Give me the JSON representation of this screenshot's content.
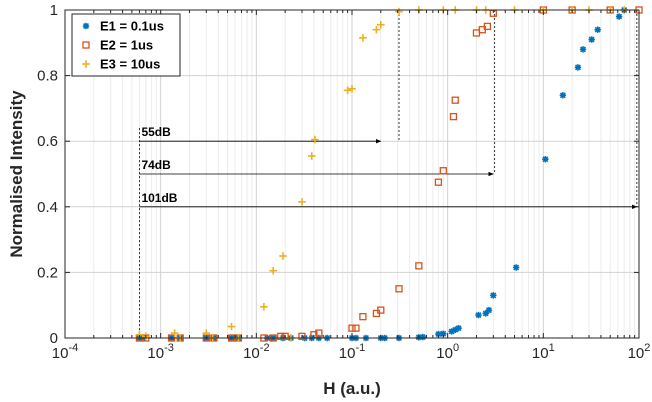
{
  "chart_data": {
    "type": "scatter",
    "xscale": "log",
    "xlim": [
      0.0001,
      100
    ],
    "ylim": [
      0,
      1
    ],
    "xlabel": "H (a.u.)",
    "ylabel": "Normalised Intensity",
    "xticks": [
      {
        "value": 0.0001,
        "base": "10",
        "exp": "-4"
      },
      {
        "value": 0.001,
        "base": "10",
        "exp": "-3"
      },
      {
        "value": 0.01,
        "base": "10",
        "exp": "-2"
      },
      {
        "value": 0.1,
        "base": "10",
        "exp": "-1"
      },
      {
        "value": 1,
        "base": "10",
        "exp": "0"
      },
      {
        "value": 10,
        "base": "10",
        "exp": "1"
      },
      {
        "value": 100,
        "base": "10",
        "exp": "2"
      }
    ],
    "yticks": [
      {
        "value": 0,
        "label": "0"
      },
      {
        "value": 0.2,
        "label": "0.2"
      },
      {
        "value": 0.4,
        "label": "0.4"
      },
      {
        "value": 0.6,
        "label": "0.6"
      },
      {
        "value": 0.8,
        "label": "0.8"
      },
      {
        "value": 1,
        "label": "1"
      }
    ],
    "grid": true,
    "legend_position": "top-left",
    "series": [
      {
        "name": "E1 = 0.1us",
        "marker": "asterisk",
        "color": "#0072BD",
        "points": [
          [
            0.0006,
            0.0
          ],
          [
            0.00065,
            0.0
          ],
          [
            0.0013,
            0.0
          ],
          [
            0.0016,
            0.0
          ],
          [
            0.003,
            0.0
          ],
          [
            0.0036,
            0.0
          ],
          [
            0.0055,
            0.0
          ],
          [
            0.0065,
            0.0
          ],
          [
            0.013,
            0.0
          ],
          [
            0.015,
            0.0
          ],
          [
            0.019,
            0.0
          ],
          [
            0.023,
            0.0
          ],
          [
            0.032,
            0.0
          ],
          [
            0.038,
            0.0
          ],
          [
            0.045,
            0.0
          ],
          [
            0.055,
            0.0
          ],
          [
            0.1,
            0.0
          ],
          [
            0.11,
            0.0
          ],
          [
            0.14,
            0.0
          ],
          [
            0.2,
            0.0
          ],
          [
            0.22,
            0.0
          ],
          [
            0.31,
            0.0
          ],
          [
            0.5,
            0.002
          ],
          [
            0.55,
            0.003
          ],
          [
            0.8,
            0.012
          ],
          [
            0.9,
            0.013
          ],
          [
            1.1,
            0.02
          ],
          [
            1.2,
            0.025
          ],
          [
            1.3,
            0.03
          ],
          [
            2.1,
            0.07
          ],
          [
            2.5,
            0.075
          ],
          [
            2.7,
            0.085
          ],
          [
            3.0,
            0.13
          ],
          [
            5.2,
            0.215
          ],
          [
            10.5,
            0.545
          ],
          [
            16,
            0.74
          ],
          [
            23,
            0.825
          ],
          [
            26,
            0.88
          ],
          [
            32,
            0.91
          ],
          [
            37,
            0.94
          ],
          [
            62,
            0.98
          ],
          [
            70,
            1.0
          ]
        ]
      },
      {
        "name": "E2 = 1us",
        "marker": "square",
        "color": "#D95319",
        "points": [
          [
            0.0006,
            0.0
          ],
          [
            0.0007,
            0.0
          ],
          [
            0.0013,
            0.0
          ],
          [
            0.0016,
            0.0
          ],
          [
            0.003,
            0.0
          ],
          [
            0.0036,
            0.0
          ],
          [
            0.0055,
            0.0
          ],
          [
            0.0065,
            0.0
          ],
          [
            0.012,
            0.0
          ],
          [
            0.015,
            0.0
          ],
          [
            0.018,
            0.005
          ],
          [
            0.02,
            0.005
          ],
          [
            0.03,
            0.005
          ],
          [
            0.04,
            0.01
          ],
          [
            0.045,
            0.015
          ],
          [
            0.1,
            0.03
          ],
          [
            0.11,
            0.03
          ],
          [
            0.13,
            0.065
          ],
          [
            0.18,
            0.075
          ],
          [
            0.2,
            0.085
          ],
          [
            0.31,
            0.15
          ],
          [
            0.5,
            0.22
          ],
          [
            0.8,
            0.475
          ],
          [
            0.9,
            0.51
          ],
          [
            1.15,
            0.675
          ],
          [
            1.2,
            0.725
          ],
          [
            2.0,
            0.93
          ],
          [
            2.3,
            0.94
          ],
          [
            2.6,
            0.95
          ],
          [
            3.0,
            0.99
          ],
          [
            10,
            1.0
          ],
          [
            20,
            1.0
          ],
          [
            50,
            1.0
          ],
          [
            100,
            1.0
          ]
        ]
      },
      {
        "name": "E3 = 10us",
        "marker": "plus",
        "color": "#EDB120",
        "points": [
          [
            0.0006,
            0.01
          ],
          [
            0.0007,
            0.005
          ],
          [
            0.0014,
            0.015
          ],
          [
            0.0016,
            0.0
          ],
          [
            0.003,
            0.015
          ],
          [
            0.0035,
            0.0
          ],
          [
            0.0055,
            0.035
          ],
          [
            0.0065,
            0.0
          ],
          [
            0.012,
            0.095
          ],
          [
            0.015,
            0.205
          ],
          [
            0.019,
            0.25
          ],
          [
            0.023,
            0.0
          ],
          [
            0.03,
            0.415
          ],
          [
            0.038,
            0.555
          ],
          [
            0.041,
            0.605
          ],
          [
            0.09,
            0.755
          ],
          [
            0.1,
            0.76
          ],
          [
            0.13,
            0.915
          ],
          [
            0.18,
            0.94
          ],
          [
            0.2,
            0.955
          ],
          [
            0.31,
            0.995
          ],
          [
            0.5,
            1.0
          ],
          [
            0.9,
            1.0
          ],
          [
            1.2,
            1.0
          ],
          [
            2.0,
            1.0
          ],
          [
            2.5,
            1.0
          ],
          [
            5,
            1.0
          ],
          [
            10,
            1.0
          ],
          [
            20,
            1.0
          ],
          [
            30,
            1.0
          ],
          [
            50,
            1.0
          ],
          [
            70,
            1.0
          ]
        ]
      }
    ],
    "annotations": [
      {
        "label": "55dB",
        "x_start": 0.0006,
        "x_end": 0.2,
        "y": 0.6,
        "x_line": 0.31
      },
      {
        "label": "74dB",
        "x_start": 0.0006,
        "x_end": 3.0,
        "y": 0.5,
        "x_line": 3.1
      },
      {
        "label": "101dB",
        "x_start": 0.0006,
        "x_end": 95,
        "y": 0.4,
        "x_line": 95
      }
    ]
  }
}
